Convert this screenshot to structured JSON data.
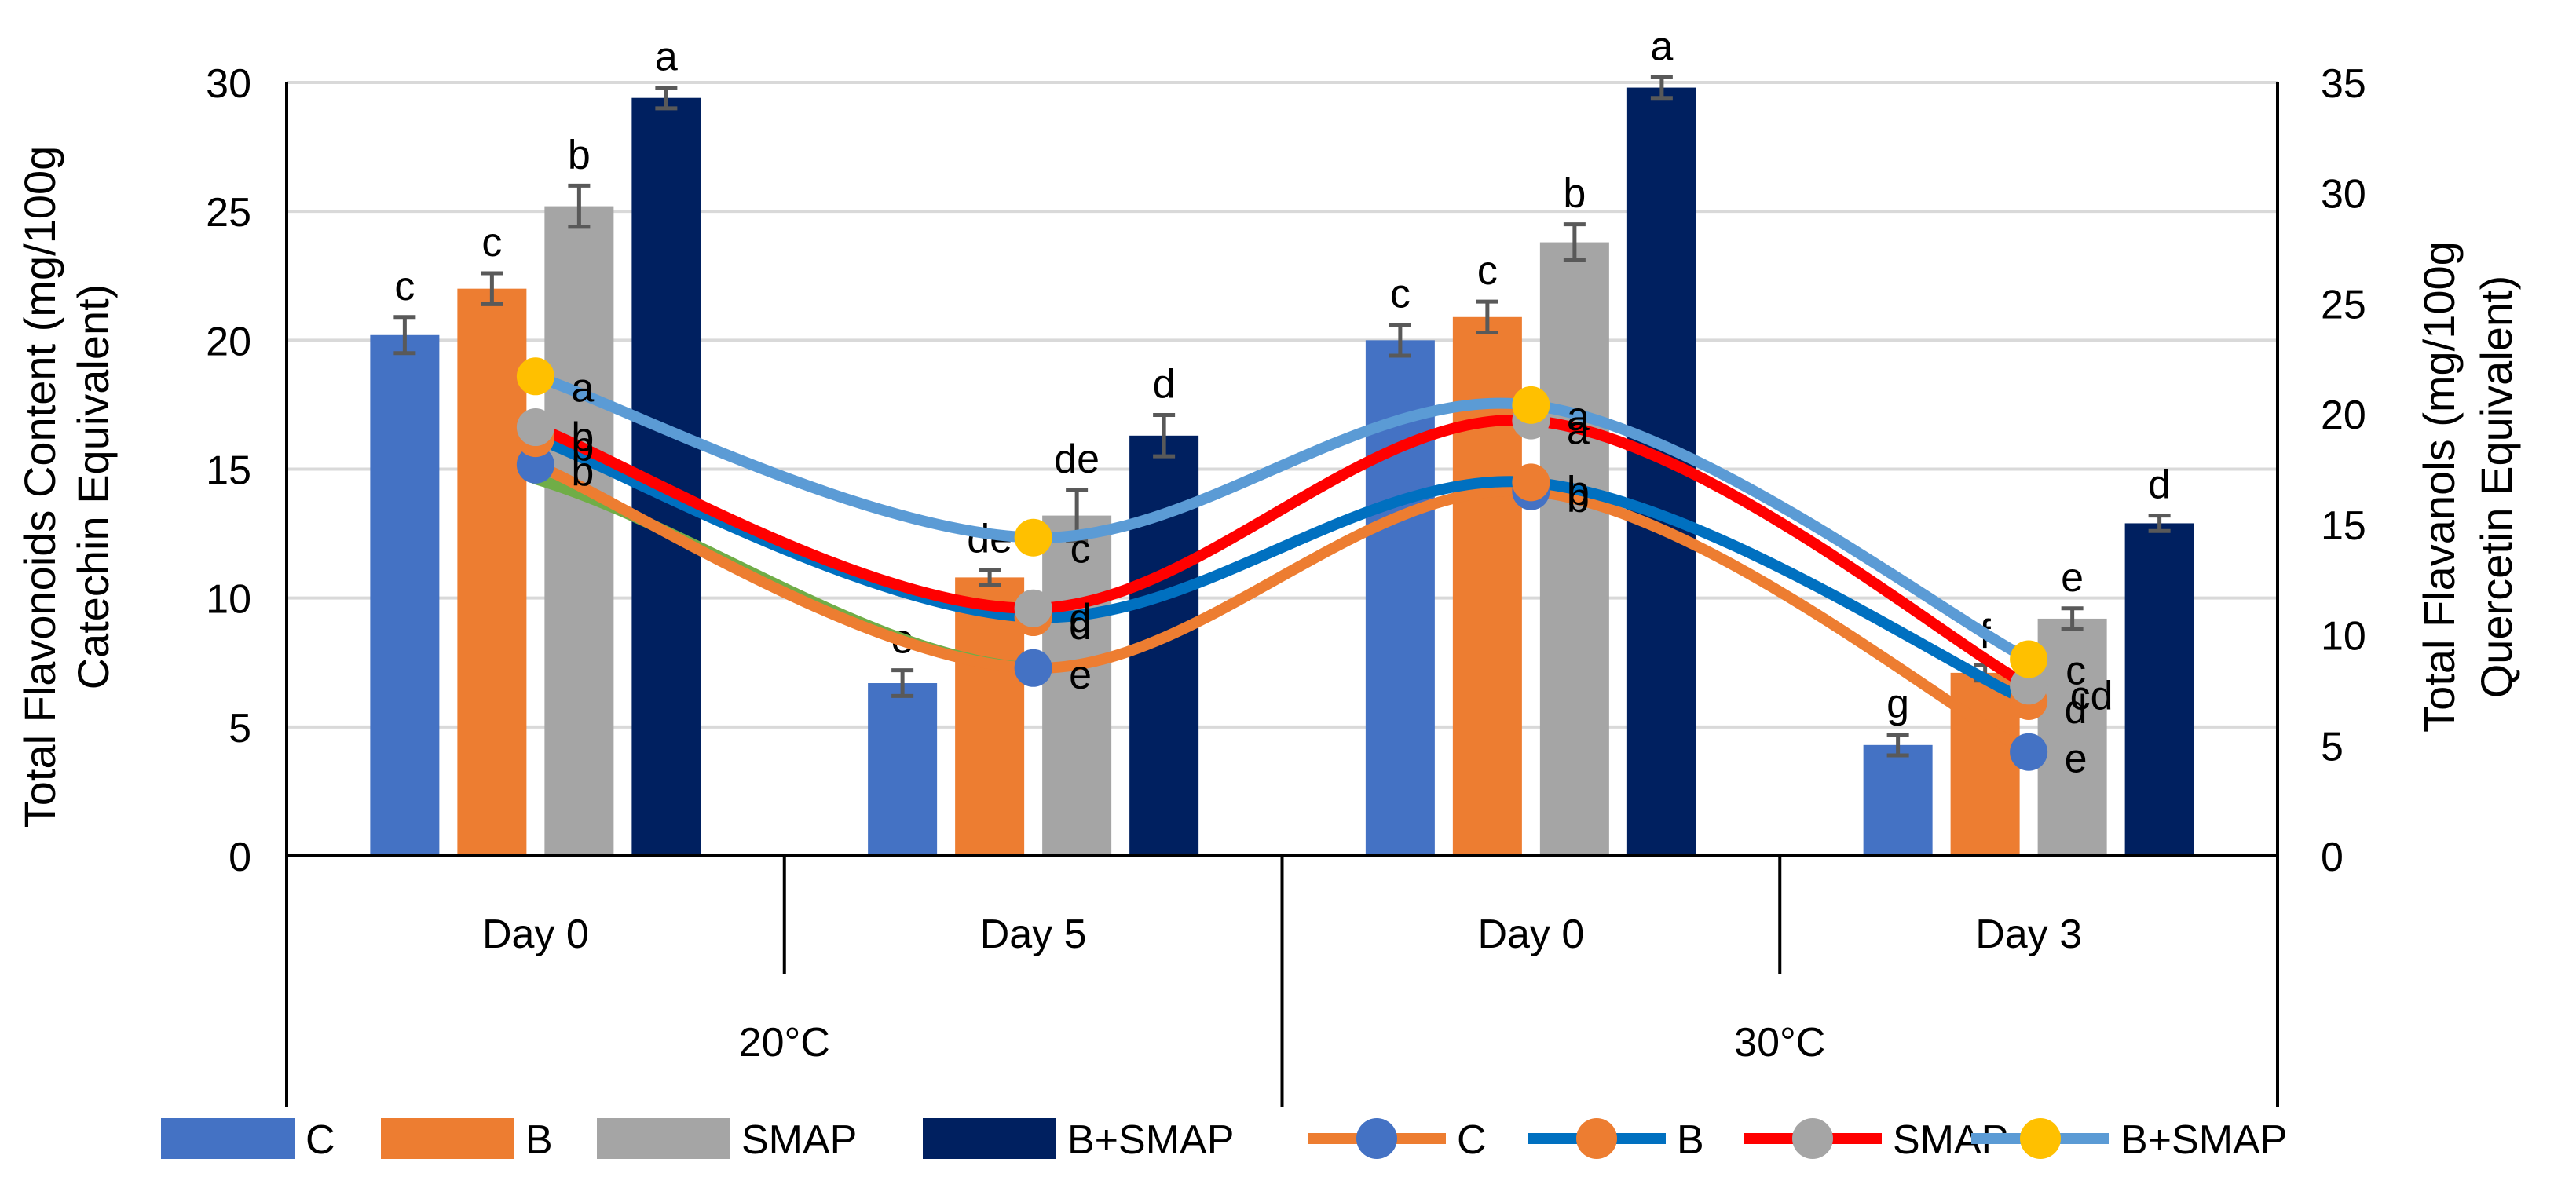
{
  "chart_data": {
    "type": "bar+line",
    "groups": [
      {
        "temperature": "20°C",
        "days": [
          "Day 0",
          "Day 5"
        ]
      },
      {
        "temperature": "30°C",
        "days": [
          "Day 0",
          "Day 3"
        ]
      }
    ],
    "categories": [
      "Day 0",
      "Day 5",
      "Day 0",
      "Day 3"
    ],
    "left_axis": {
      "label_line1": "Total Flavonoids Content (mg/100g",
      "label_line2": "Catechin Equivalent)",
      "range": [
        0,
        30
      ],
      "ticks": [
        0,
        5,
        10,
        15,
        20,
        25,
        30
      ]
    },
    "right_axis": {
      "label_line1": "Total Flavanols (mg/100g",
      "label_line2": "Quercetin Equivalent)",
      "range": [
        0,
        35
      ],
      "ticks": [
        0,
        5,
        10,
        15,
        20,
        25,
        30,
        35
      ]
    },
    "bar_series": [
      {
        "name": "C",
        "color": "#4472C4",
        "values": [
          20.2,
          6.7,
          20.0,
          4.3
        ],
        "errors": [
          0.7,
          0.5,
          0.6,
          0.4
        ],
        "letters": [
          "c",
          "e",
          "c",
          "g"
        ]
      },
      {
        "name": "B",
        "color": "#ED7D31",
        "values": [
          22.0,
          10.8,
          20.9,
          7.1
        ],
        "errors": [
          0.6,
          0.3,
          0.6,
          0.3
        ],
        "letters": [
          "c",
          "de",
          "c",
          "f"
        ]
      },
      {
        "name": "SMAP",
        "color": "#A5A5A5",
        "values": [
          25.2,
          13.2,
          23.8,
          9.2
        ],
        "errors": [
          0.8,
          1.0,
          0.7,
          0.4
        ],
        "letters": [
          "b",
          "de",
          "b",
          "e"
        ]
      },
      {
        "name": "B+SMAP",
        "color": "#002060",
        "values": [
          29.4,
          16.3,
          29.8,
          12.9
        ],
        "errors": [
          0.4,
          0.8,
          0.4,
          0.3
        ],
        "letters": [
          "a",
          "d",
          "a",
          "d"
        ]
      }
    ],
    "line_series": [
      {
        "name": "C",
        "line_color": "#ED7D31",
        "marker_color": "#4472C4",
        "values": [
          17.7,
          8.5,
          16.5,
          4.7
        ],
        "letters": [
          "b",
          "e",
          "b",
          "e"
        ]
      },
      {
        "name": "B",
        "line_color": "#0070C0",
        "marker_color": "#ED7D31",
        "values": [
          18.9,
          10.8,
          16.9,
          7.0
        ],
        "letters": [
          "b",
          "d",
          "b",
          "d"
        ]
      },
      {
        "name": "SMAP",
        "line_color": "#FF0000",
        "marker_color": "#A5A5A5",
        "values": [
          19.4,
          11.2,
          19.7,
          7.7
        ],
        "letters": [
          "b",
          "d",
          "a",
          "cd"
        ]
      },
      {
        "name": "B+SMAP",
        "line_color": "#5B9BD5",
        "marker_color": "#FFC000",
        "values": [
          21.7,
          14.4,
          20.4,
          8.9
        ],
        "letters": [
          "a",
          "c",
          "a",
          "c"
        ]
      }
    ],
    "extra_segment": {
      "color": "#70AD47",
      "description": "green connector from Day 0 to Day 5 at 20°C"
    },
    "legend": {
      "position": "bottom",
      "bar_labels": [
        "C",
        "B",
        "SMAP",
        "B+SMAP"
      ],
      "line_labels": [
        "C",
        "B",
        "SMAP",
        "B+SMAP"
      ]
    }
  }
}
